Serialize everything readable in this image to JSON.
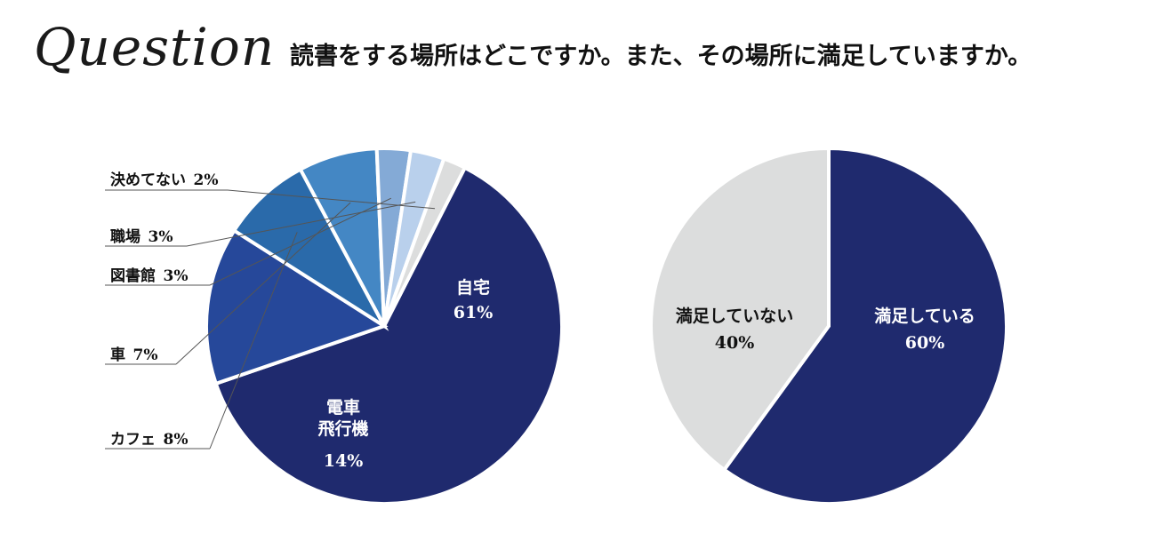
{
  "header": {
    "logo_text": "Question",
    "question": "読書をする場所はどこですか。また、その場所に満足していますか。"
  },
  "chart_data": [
    {
      "type": "pie",
      "slices": [
        {
          "label": "自宅",
          "lines": [
            "自宅"
          ],
          "value": 61,
          "value_label": "61%",
          "color": "#1f2a6e",
          "label_style": "inside"
        },
        {
          "label": "電車飛行機",
          "lines": [
            "電車",
            "飛行機"
          ],
          "value": 14,
          "value_label": "14%",
          "color": "#26489a",
          "label_style": "inside"
        },
        {
          "label": "カフェ",
          "lines": [
            "カフェ"
          ],
          "value": 8,
          "value_label": "8%",
          "color": "#2a6aaa",
          "label_style": "callout"
        },
        {
          "label": "車",
          "lines": [
            "車"
          ],
          "value": 7,
          "value_label": "7%",
          "color": "#4487c4",
          "label_style": "callout"
        },
        {
          "label": "図書館",
          "lines": [
            "図書館"
          ],
          "value": 3,
          "value_label": "3%",
          "color": "#84aad6",
          "label_style": "callout"
        },
        {
          "label": "職場",
          "lines": [
            "職場"
          ],
          "value": 3,
          "value_label": "3%",
          "color": "#b9d0ec",
          "label_style": "callout"
        },
        {
          "label": "決めてない",
          "lines": [
            "決めてない"
          ],
          "value": 2,
          "value_label": "2%",
          "color": "#dcdddd",
          "label_style": "callout"
        }
      ]
    },
    {
      "type": "pie",
      "slices": [
        {
          "label": "満足している",
          "lines": [
            "満足している"
          ],
          "value": 60,
          "value_label": "60%",
          "color": "#1f2a6e",
          "label_style": "inside"
        },
        {
          "label": "満足していない",
          "lines": [
            "満足していない"
          ],
          "value": 40,
          "value_label": "40%",
          "color": "#dcdddd",
          "label_style": "inside"
        }
      ]
    }
  ]
}
